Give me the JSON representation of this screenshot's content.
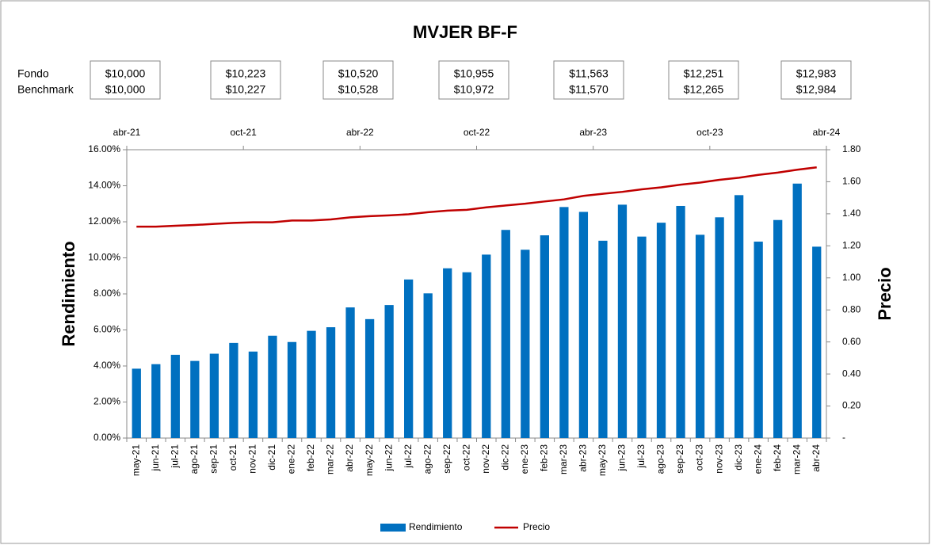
{
  "chart_data": {
    "type": "bar",
    "title": "MVJER BF-F",
    "summary": {
      "row_labels": [
        "Fondo",
        "Benchmark"
      ],
      "boxes": [
        {
          "fondo": "$10,000",
          "benchmark": "$10,000"
        },
        {
          "fondo": "$10,223",
          "benchmark": "$10,227"
        },
        {
          "fondo": "$10,520",
          "benchmark": "$10,528"
        },
        {
          "fondo": "$10,955",
          "benchmark": "$10,972"
        },
        {
          "fondo": "$11,563",
          "benchmark": "$11,570"
        },
        {
          "fondo": "$12,251",
          "benchmark": "$12,265"
        },
        {
          "fondo": "$12,983",
          "benchmark": "$12,984"
        }
      ]
    },
    "top_axis_labels": [
      "abr-21",
      "oct-21",
      "abr-22",
      "oct-22",
      "abr-23",
      "oct-23",
      "abr-24"
    ],
    "y_label": "Rendimiento",
    "y2_label": "Precio",
    "categories": [
      "may-21",
      "jun-21",
      "jul-21",
      "ago-21",
      "sep-21",
      "oct-21",
      "nov-21",
      "dic-21",
      "ene-22",
      "feb-22",
      "mar-22",
      "abr-22",
      "may-22",
      "jun-22",
      "jul-22",
      "ago-22",
      "sep-22",
      "oct-22",
      "nov-22",
      "dic-22",
      "ene-23",
      "feb-23",
      "mar-23",
      "abr-23",
      "may-23",
      "jun-23",
      "jul-23",
      "ago-23",
      "sep-23",
      "oct-23",
      "nov-23",
      "dic-23",
      "ene-24",
      "feb-24",
      "mar-24",
      "abr-24"
    ],
    "series": [
      {
        "name": "Rendimiento",
        "type": "bar",
        "color": "#0070c0",
        "values": [
          3.85,
          4.1,
          4.62,
          4.28,
          4.68,
          5.28,
          4.8,
          5.68,
          5.33,
          5.95,
          6.15,
          7.25,
          6.6,
          7.38,
          8.8,
          8.03,
          9.42,
          9.2,
          10.18,
          11.55,
          10.45,
          11.25,
          12.82,
          12.55,
          10.95,
          12.95,
          11.18,
          11.95,
          12.88,
          11.28,
          12.25,
          13.48,
          10.9,
          12.1,
          14.12,
          10.62
        ]
      },
      {
        "name": "Precio",
        "type": "line",
        "color": "#c00000",
        "axis": "y2",
        "values": [
          1.32,
          1.32,
          1.325,
          1.33,
          1.337,
          1.343,
          1.347,
          1.347,
          1.358,
          1.358,
          1.365,
          1.378,
          1.385,
          1.39,
          1.397,
          1.41,
          1.42,
          1.425,
          1.44,
          1.452,
          1.463,
          1.477,
          1.49,
          1.512,
          1.525,
          1.537,
          1.553,
          1.565,
          1.582,
          1.595,
          1.612,
          1.625,
          1.643,
          1.657,
          1.675,
          1.69
        ]
      }
    ],
    "ylim": [
      0,
      16
    ],
    "yticks": [
      {
        "value": 0,
        "label": "0.00%"
      },
      {
        "value": 2,
        "label": "2.00%"
      },
      {
        "value": 4,
        "label": "4.00%"
      },
      {
        "value": 6,
        "label": "6.00%"
      },
      {
        "value": 8,
        "label": "8.00%"
      },
      {
        "value": 10,
        "label": "10.00%"
      },
      {
        "value": 12,
        "label": "12.00%"
      },
      {
        "value": 14,
        "label": "14.00%"
      },
      {
        "value": 16,
        "label": "16.00%"
      }
    ],
    "y2lim": [
      0,
      1.8
    ],
    "y2ticks": [
      {
        "value": 0,
        "label": "-"
      },
      {
        "value": 0.2,
        "label": "0.20"
      },
      {
        "value": 0.4,
        "label": "0.40"
      },
      {
        "value": 0.6,
        "label": "0.60"
      },
      {
        "value": 0.8,
        "label": "0.80"
      },
      {
        "value": 1,
        "label": "1.00"
      },
      {
        "value": 1.2,
        "label": "1.20"
      },
      {
        "value": 1.4,
        "label": "1.40"
      },
      {
        "value": 1.6,
        "label": "1.60"
      },
      {
        "value": 1.8,
        "label": "1.80"
      }
    ],
    "grid": false,
    "legend": "bottom"
  }
}
